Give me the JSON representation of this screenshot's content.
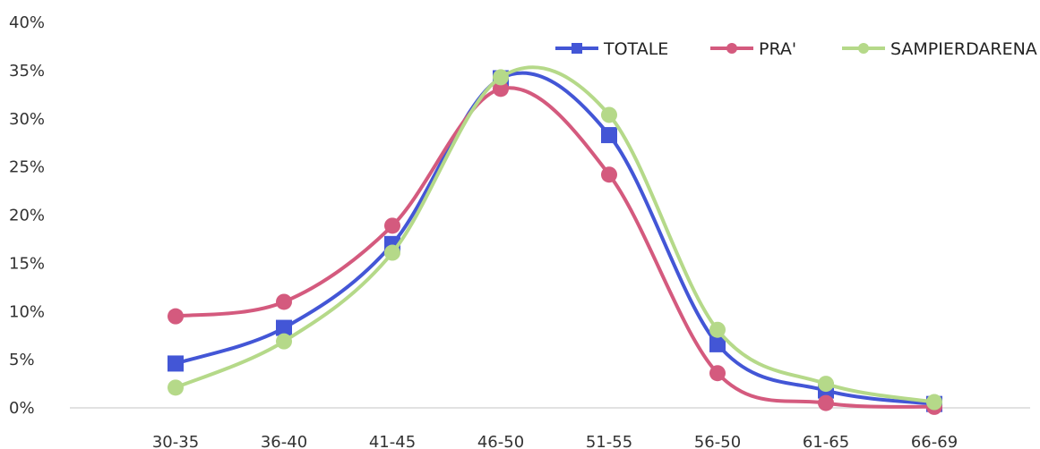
{
  "chart_data": {
    "type": "line",
    "categories": [
      "30-35",
      "36-40",
      "41-45",
      "46-50",
      "51-55",
      "56-50",
      "61-65",
      "66-69"
    ],
    "ylim": [
      0,
      40
    ],
    "yticks": [
      0,
      5,
      10,
      15,
      20,
      25,
      30,
      35,
      40
    ],
    "ytick_suffix": "%",
    "grid": false,
    "legend_position": "top-right",
    "series": [
      {
        "name": "TOTALE",
        "color": "#4356d6",
        "marker": "square",
        "values": [
          4.6,
          8.3,
          17.0,
          34.2,
          28.3,
          6.6,
          1.8,
          0.4
        ]
      },
      {
        "name": "PRA'",
        "color": "#d45a7e",
        "marker": "circle",
        "values": [
          9.5,
          11.0,
          18.9,
          33.1,
          24.2,
          3.6,
          0.5,
          0.1
        ]
      },
      {
        "name": "SAMPIERDARENA",
        "color": "#b5d989",
        "marker": "circle",
        "values": [
          2.1,
          6.9,
          16.1,
          34.3,
          30.4,
          8.1,
          2.5,
          0.6
        ]
      }
    ]
  }
}
